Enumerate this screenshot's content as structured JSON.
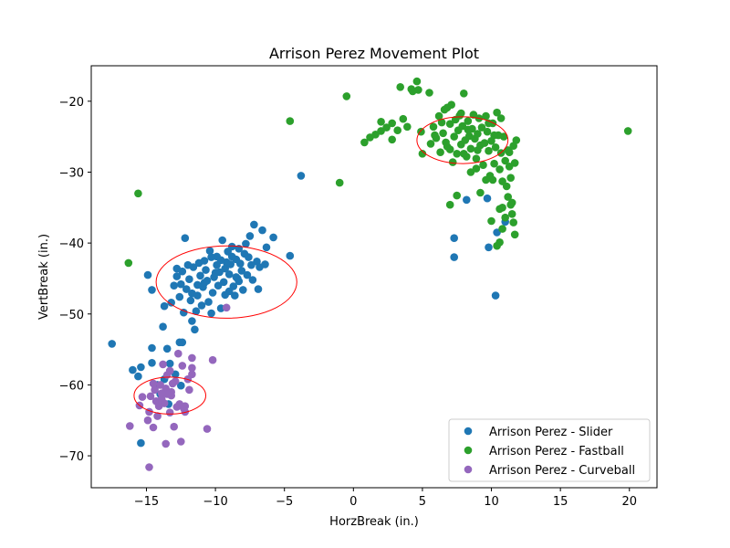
{
  "chart_data": {
    "type": "scatter",
    "title": "Arrison Perez Movement Plot",
    "xlabel": "HorzBreak (in.)",
    "ylabel": "VertBreak (in.)",
    "xlim": [
      -19,
      22
    ],
    "ylim": [
      -74.5,
      -15
    ],
    "x_ticks": [
      -15,
      -10,
      -5,
      0,
      5,
      10,
      15,
      20
    ],
    "y_ticks": [
      -20,
      -30,
      -40,
      -50,
      -60,
      -70
    ],
    "grid": false,
    "legend_position": "lower-right",
    "series": [
      {
        "name": "Arrison Perez - Slider",
        "color": "#1f77b4",
        "points": [
          [
            -3.8,
            -30.5
          ],
          [
            -4.6,
            -41.8
          ],
          [
            -5.8,
            -39.2
          ],
          [
            -6.3,
            -40.6
          ],
          [
            -6.6,
            -38.2
          ],
          [
            -7.2,
            -37.4
          ],
          [
            -7.5,
            -39.0
          ],
          [
            -7.0,
            -42.6
          ],
          [
            -7.4,
            -43.1
          ],
          [
            -7.8,
            -40.1
          ],
          [
            -8.3,
            -40.8
          ],
          [
            -8.8,
            -40.5
          ],
          [
            -9.1,
            -41.2
          ],
          [
            -9.5,
            -39.6
          ],
          [
            -9.9,
            -41.9
          ],
          [
            -10.4,
            -41.1
          ],
          [
            -10.8,
            -42.5
          ],
          [
            -11.2,
            -42.8
          ],
          [
            -11.6,
            -43.4
          ],
          [
            -12.2,
            -39.3
          ],
          [
            -12.0,
            -43.1
          ],
          [
            -12.4,
            -44.0
          ],
          [
            -12.8,
            -44.7
          ],
          [
            -13.0,
            -46.0
          ],
          [
            -12.5,
            -45.8
          ],
          [
            -12.1,
            -46.5
          ],
          [
            -11.7,
            -47.1
          ],
          [
            -11.3,
            -47.4
          ],
          [
            -10.9,
            -46.2
          ],
          [
            -10.6,
            -45.3
          ],
          [
            -10.1,
            -44.8
          ],
          [
            -9.7,
            -44.1
          ],
          [
            -9.3,
            -43.6
          ],
          [
            -8.9,
            -43.0
          ],
          [
            -8.5,
            -42.3
          ],
          [
            -8.1,
            -43.9
          ],
          [
            -7.7,
            -44.5
          ],
          [
            -7.3,
            -45.2
          ],
          [
            -6.9,
            -46.5
          ],
          [
            -8.4,
            -45.0
          ],
          [
            -8.7,
            -46.1
          ],
          [
            -9.0,
            -46.8
          ],
          [
            -9.4,
            -45.5
          ],
          [
            -9.8,
            -46.0
          ],
          [
            -10.2,
            -47.0
          ],
          [
            -10.5,
            -48.3
          ],
          [
            -11.0,
            -48.8
          ],
          [
            -11.4,
            -49.6
          ],
          [
            -11.8,
            -48.1
          ],
          [
            -12.6,
            -47.6
          ],
          [
            -13.2,
            -48.4
          ],
          [
            -13.7,
            -48.9
          ],
          [
            -12.3,
            -49.8
          ],
          [
            -11.7,
            -51.0
          ],
          [
            -11.5,
            -52.2
          ],
          [
            -10.3,
            -49.9
          ],
          [
            -9.6,
            -49.2
          ],
          [
            -8.6,
            -47.4
          ],
          [
            -8.0,
            -46.6
          ],
          [
            -7.6,
            -42.0
          ],
          [
            -6.8,
            -43.4
          ],
          [
            -9.2,
            -42.7
          ],
          [
            -10.7,
            -43.8
          ],
          [
            -11.1,
            -44.6
          ],
          [
            -11.9,
            -45.1
          ],
          [
            -10.0,
            -44.2
          ],
          [
            -9.0,
            -44.4
          ],
          [
            -8.2,
            -42.9
          ],
          [
            -7.9,
            -41.5
          ],
          [
            -8.8,
            -41.9
          ],
          [
            -9.6,
            -42.4
          ],
          [
            -10.3,
            -42.0
          ],
          [
            -8.5,
            -44.8
          ],
          [
            -9.3,
            -47.3
          ],
          [
            -10.8,
            -45.6
          ],
          [
            -11.3,
            -45.9
          ],
          [
            -12.8,
            -43.6
          ],
          [
            -6.4,
            -43.0
          ],
          [
            -9.9,
            -43.1
          ],
          [
            -8.3,
            -45.4
          ],
          [
            -13.8,
            -51.8
          ],
          [
            -14.6,
            -46.6
          ],
          [
            -14.9,
            -44.5
          ],
          [
            -16.0,
            -57.9
          ],
          [
            -17.5,
            -54.2
          ],
          [
            -15.4,
            -57.5
          ],
          [
            -15.6,
            -58.8
          ],
          [
            -14.6,
            -54.8
          ],
          [
            -13.5,
            -54.9
          ],
          [
            -12.6,
            -54.0
          ],
          [
            -12.4,
            -54.0
          ],
          [
            -14.6,
            -56.9
          ],
          [
            -13.3,
            -57.0
          ],
          [
            -13.7,
            -59.2
          ],
          [
            -12.9,
            -58.5
          ],
          [
            -14.2,
            -60.0
          ],
          [
            -12.5,
            -60.1
          ],
          [
            -15.4,
            -68.2
          ],
          [
            -13.4,
            -62.7
          ],
          [
            -14.0,
            -61.3
          ],
          [
            7.3,
            -39.3
          ],
          [
            7.3,
            -42.0
          ],
          [
            8.2,
            -33.9
          ],
          [
            9.7,
            -33.7
          ],
          [
            9.8,
            -40.6
          ],
          [
            10.3,
            -47.4
          ],
          [
            10.4,
            -38.5
          ],
          [
            11.0,
            -37.0
          ]
        ]
      },
      {
        "name": "Arrison Perez - Fastball",
        "color": "#2ca02c",
        "points": [
          [
            -16.3,
            -42.8
          ],
          [
            -15.6,
            -33.0
          ],
          [
            -4.6,
            -22.8
          ],
          [
            -1.0,
            -31.5
          ],
          [
            -0.5,
            -19.3
          ],
          [
            0.8,
            -25.8
          ],
          [
            1.2,
            -25.1
          ],
          [
            1.6,
            -24.7
          ],
          [
            2.0,
            -24.2
          ],
          [
            2.0,
            -22.9
          ],
          [
            2.4,
            -23.7
          ],
          [
            2.8,
            -23.1
          ],
          [
            2.8,
            -25.4
          ],
          [
            3.2,
            -24.1
          ],
          [
            3.6,
            -22.5
          ],
          [
            3.4,
            -18.0
          ],
          [
            3.9,
            -23.6
          ],
          [
            4.2,
            -18.3
          ],
          [
            4.3,
            -18.6
          ],
          [
            4.6,
            -17.2
          ],
          [
            4.7,
            -18.4
          ],
          [
            4.9,
            -24.3
          ],
          [
            5.0,
            -27.4
          ],
          [
            5.5,
            -18.8
          ],
          [
            5.6,
            -26.0
          ],
          [
            5.8,
            -23.6
          ],
          [
            6.0,
            -25.2
          ],
          [
            6.2,
            -22.1
          ],
          [
            6.3,
            -27.2
          ],
          [
            6.5,
            -24.5
          ],
          [
            6.6,
            -21.2
          ],
          [
            6.8,
            -26.4
          ],
          [
            7.0,
            -23.2
          ],
          [
            7.1,
            -20.5
          ],
          [
            7.2,
            -28.6
          ],
          [
            7.3,
            -25.0
          ],
          [
            7.4,
            -22.6
          ],
          [
            7.5,
            -27.4
          ],
          [
            7.6,
            -24.1
          ],
          [
            7.8,
            -26.1
          ],
          [
            7.9,
            -23.5
          ],
          [
            8.0,
            -18.9
          ],
          [
            8.1,
            -25.5
          ],
          [
            8.2,
            -27.8
          ],
          [
            8.3,
            -22.8
          ],
          [
            8.4,
            -24.9
          ],
          [
            8.5,
            -26.7
          ],
          [
            8.6,
            -23.9
          ],
          [
            8.7,
            -21.9
          ],
          [
            8.8,
            -25.3
          ],
          [
            8.9,
            -28.1
          ],
          [
            9.0,
            -24.6
          ],
          [
            9.1,
            -22.4
          ],
          [
            9.2,
            -26.2
          ],
          [
            9.3,
            -23.7
          ],
          [
            9.4,
            -29.0
          ],
          [
            9.5,
            -25.9
          ],
          [
            9.6,
            -22.1
          ],
          [
            9.7,
            -24.3
          ],
          [
            9.8,
            -27.0
          ],
          [
            9.9,
            -30.5
          ],
          [
            10.0,
            -25.6
          ],
          [
            10.1,
            -23.1
          ],
          [
            10.2,
            -28.8
          ],
          [
            10.3,
            -26.5
          ],
          [
            10.4,
            -21.6
          ],
          [
            10.5,
            -24.8
          ],
          [
            10.6,
            -29.6
          ],
          [
            10.7,
            -27.3
          ],
          [
            10.8,
            -31.3
          ],
          [
            10.9,
            -25.0
          ],
          [
            11.0,
            -28.4
          ],
          [
            11.1,
            -32.0
          ],
          [
            11.2,
            -26.9
          ],
          [
            11.3,
            -29.2
          ],
          [
            11.4,
            -34.6
          ],
          [
            11.5,
            -35.9
          ],
          [
            11.6,
            -37.1
          ],
          [
            11.7,
            -38.8
          ],
          [
            11.8,
            -25.5
          ],
          [
            11.6,
            -26.3
          ],
          [
            11.4,
            -30.8
          ],
          [
            11.2,
            -33.5
          ],
          [
            11.0,
            -36.4
          ],
          [
            10.8,
            -38.0
          ],
          [
            10.6,
            -39.9
          ],
          [
            10.4,
            -40.4
          ],
          [
            10.6,
            -35.2
          ],
          [
            10.8,
            -35.0
          ],
          [
            11.5,
            -34.3
          ],
          [
            9.2,
            -32.9
          ],
          [
            7.5,
            -33.3
          ],
          [
            7.0,
            -34.6
          ],
          [
            10.0,
            -36.9
          ],
          [
            10.1,
            -31.1
          ],
          [
            9.6,
            -31.1
          ],
          [
            8.5,
            -30.0
          ],
          [
            8.9,
            -29.5
          ],
          [
            11.7,
            -28.7
          ],
          [
            11.3,
            -27.2
          ],
          [
            7.8,
            -21.7
          ],
          [
            6.8,
            -20.9
          ],
          [
            5.9,
            -24.8
          ],
          [
            6.4,
            -23.0
          ],
          [
            7.7,
            -22.0
          ],
          [
            8.3,
            -24.0
          ],
          [
            9.8,
            -23.1
          ],
          [
            10.7,
            -22.4
          ],
          [
            10.2,
            -24.8
          ],
          [
            9.0,
            -26.9
          ],
          [
            8.0,
            -27.4
          ],
          [
            7.0,
            -26.8
          ],
          [
            6.7,
            -25.8
          ],
          [
            19.9,
            -24.2
          ]
        ]
      },
      {
        "name": "Arrison Perez - Curveball",
        "color": "#9467bd",
        "points": [
          [
            -10.6,
            -66.2
          ],
          [
            -10.2,
            -56.5
          ],
          [
            -11.7,
            -56.2
          ],
          [
            -11.7,
            -58.5
          ],
          [
            -11.7,
            -57.6
          ],
          [
            -11.9,
            -60.7
          ],
          [
            -12.2,
            -63.8
          ],
          [
            -12.3,
            -63.3
          ],
          [
            -12.4,
            -57.3
          ],
          [
            -12.6,
            -62.7
          ],
          [
            -12.7,
            -55.6
          ],
          [
            -12.5,
            -68.0
          ],
          [
            -12.9,
            -59.5
          ],
          [
            -13.1,
            -59.8
          ],
          [
            -13.2,
            -61.5
          ],
          [
            -13.3,
            -63.9
          ],
          [
            -13.0,
            -65.9
          ],
          [
            -13.5,
            -58.6
          ],
          [
            -13.6,
            -60.5
          ],
          [
            -13.7,
            -62.6
          ],
          [
            -13.8,
            -57.1
          ],
          [
            -13.6,
            -68.3
          ],
          [
            -13.9,
            -61.2
          ],
          [
            -14.0,
            -60.0
          ],
          [
            -14.2,
            -64.4
          ],
          [
            -14.3,
            -62.3
          ],
          [
            -14.5,
            -59.8
          ],
          [
            -14.5,
            -66.0
          ],
          [
            -14.7,
            -61.6
          ],
          [
            -14.8,
            -63.8
          ],
          [
            -14.9,
            -65.0
          ],
          [
            -15.3,
            -61.7
          ],
          [
            -15.5,
            -62.9
          ],
          [
            -16.2,
            -65.8
          ],
          [
            -14.8,
            -71.6
          ],
          [
            -13.2,
            -61.0
          ],
          [
            -12.8,
            -63.1
          ],
          [
            -14.1,
            -63.0
          ],
          [
            -13.3,
            -58.0
          ],
          [
            -9.2,
            -49.1
          ],
          [
            -12.0,
            -59.2
          ],
          [
            -14.4,
            -60.7
          ],
          [
            -13.5,
            -61.3
          ],
          [
            -12.2,
            -63.0
          ],
          [
            -13.9,
            -62.0
          ]
        ]
      }
    ],
    "ellipses": [
      {
        "series": "Arrison Perez - Slider",
        "center": [
          -9.2,
          -45.5
        ],
        "radii": [
          5.1,
          5.1
        ],
        "color": "#ff0000"
      },
      {
        "series": "Arrison Perez - Fastball",
        "center": [
          7.9,
          -25.5
        ],
        "radii": [
          3.3,
          3.3
        ],
        "color": "#ff0000"
      },
      {
        "series": "Arrison Perez - Curveball",
        "center": [
          -13.3,
          -61.5
        ],
        "radii": [
          2.6,
          2.6
        ],
        "color": "#ff0000"
      }
    ]
  }
}
